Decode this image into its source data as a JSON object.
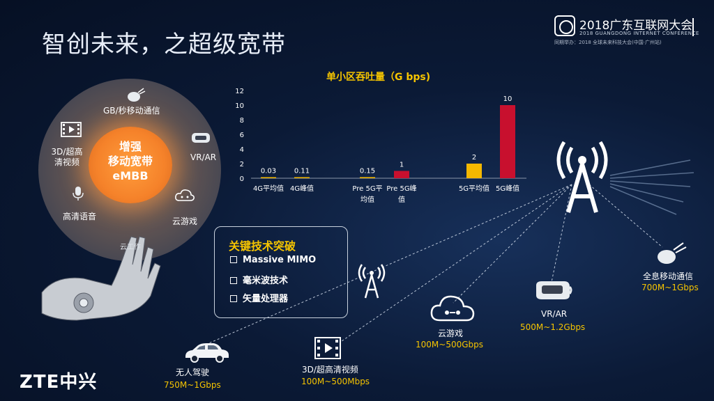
{
  "title": "智创未来，之超级宽带",
  "conference": {
    "main": "2018广东互联网大会",
    "sub": "2018 GUANGDONG INTERNET CONFERENCE",
    "sub2": "同期举办：2018 全球未来科技大会(中国·广州站)"
  },
  "circle": {
    "center_line1": "增强",
    "center_line2": "移动宽带",
    "center_line3": "eMBB",
    "segments": [
      "GB/秒移动通信",
      "VR/AR",
      "云游戏",
      "云工作",
      "高清语音",
      "3D/超高清视频"
    ]
  },
  "chart_data": {
    "type": "bar",
    "title": "单小区吞吐量（G bps)",
    "categories": [
      "4G平均值",
      "4G峰值",
      "Pre 5G平均值",
      "Pre 5G峰值",
      "5G平均值",
      "5G峰值"
    ],
    "category_lines": [
      [
        "4G平均值"
      ],
      [
        "4G峰值"
      ],
      [
        "Pre 5G平",
        "均值"
      ],
      [
        "Pre 5G峰",
        "值"
      ],
      [
        "5G平均值"
      ],
      [
        "5G峰值"
      ]
    ],
    "values": [
      0.03,
      0.11,
      0.15,
      1,
      2,
      10
    ],
    "value_labels": [
      "0.03",
      "0.11",
      "0.15",
      "1",
      "2",
      "10"
    ],
    "colors": [
      "#f5b800",
      "#f5b800",
      "#f5b800",
      "#c8102e",
      "#f5b800",
      "#c8102e"
    ],
    "ylim": [
      0,
      12
    ],
    "yticks": [
      0,
      2,
      4,
      6,
      8,
      10,
      12
    ]
  },
  "key_box": {
    "title": "关键技术突破",
    "items": [
      "Massive MIMO",
      "毫米波技术",
      "矢量处理器"
    ]
  },
  "apps": [
    {
      "name": "无人驾驶",
      "rate": "750M~1Gbps"
    },
    {
      "name": "3D/超高清视频",
      "rate": "100M~500Mbps"
    },
    {
      "name": "云游戏",
      "rate": "100M~500Gbps"
    },
    {
      "name": "VR/AR",
      "rate": "500M~1.2Gbps"
    },
    {
      "name": "全息移动通信",
      "rate": "700M~1Gbps"
    }
  ],
  "brand": "ZTE中兴",
  "icons": [
    "antenna-icon",
    "car-icon",
    "video-icon",
    "cloud-game-icon",
    "vr-headset-icon",
    "hologram-icon",
    "microphone-icon"
  ]
}
